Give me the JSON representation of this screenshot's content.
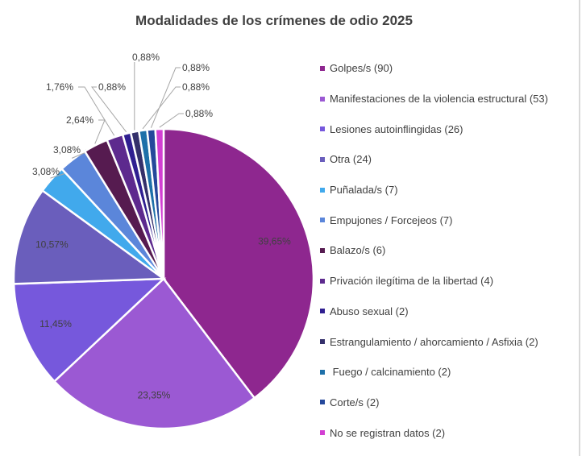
{
  "chart_data": {
    "type": "pie",
    "title": "Modalidades de los crímenes de odio 2025",
    "legend_position": "right",
    "start_angle": "12 o'clock, clockwise",
    "slices": [
      {
        "label": "Golpes/s (90)",
        "value": 90,
        "pct_label": "39,65%",
        "color": "#8E278F"
      },
      {
        "label": "Manifestaciones de la violencia estructural (53)",
        "value": 53,
        "pct_label": "23,35%",
        "color": "#9B59D3"
      },
      {
        "label": "Lesiones autoinflingidas (26)",
        "value": 26,
        "pct_label": "11,45%",
        "color": "#7658DC"
      },
      {
        "label": "Otra (24)",
        "value": 24,
        "pct_label": "10,57%",
        "color": "#6A5EBC"
      },
      {
        "label": "Puñalada/s (7)",
        "value": 7,
        "pct_label": "3,08%",
        "color": "#41A9EC"
      },
      {
        "label": "Empujones / Forcejeos (7)",
        "value": 7,
        "pct_label": "3,08%",
        "color": "#5B86DA"
      },
      {
        "label": "Balazo/s (6)",
        "value": 6,
        "pct_label": "2,64%",
        "color": "#561B50"
      },
      {
        "label": "Privación ilegítima de la libertad (4)",
        "value": 4,
        "pct_label": "1,76%",
        "color": "#5D2A8E"
      },
      {
        "label": "Abuso sexual (2)",
        "value": 2,
        "pct_label": "0,88%",
        "color": "#2F1F90"
      },
      {
        "label": "Estrangulamiento / ahorcamiento / Asfixia (2)",
        "value": 2,
        "pct_label": "0,88%",
        "color": "#34306B"
      },
      {
        "label": " Fuego / calcinamiento (2)",
        "value": 2,
        "pct_label": "0,88%",
        "color": "#1E70A9"
      },
      {
        "label": "Corte/s (2)",
        "value": 2,
        "pct_label": "0,88%",
        "color": "#25489B"
      },
      {
        "label": "No se registran datos (2)",
        "value": 2,
        "pct_label": "0,88%",
        "color": "#D23FD2"
      }
    ]
  }
}
